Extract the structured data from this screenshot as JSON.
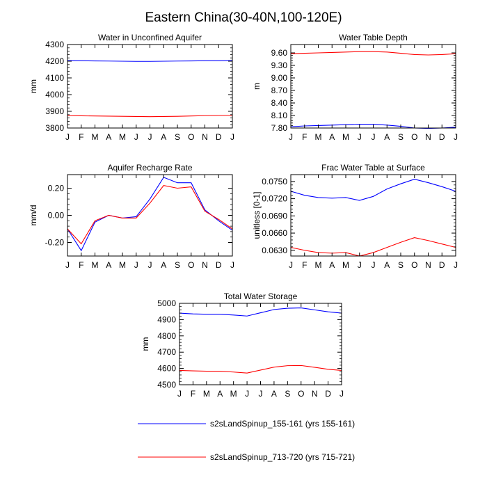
{
  "figure": {
    "title": "Eastern China(30-40N,100-120E)"
  },
  "chart_data": [
    {
      "type": "line",
      "title": "Water in Unconfined Aquifer",
      "ylabel": "mm",
      "categories": [
        "J",
        "F",
        "M",
        "A",
        "M",
        "J",
        "J",
        "A",
        "S",
        "O",
        "N",
        "D",
        "J"
      ],
      "ylim": [
        3800,
        4300
      ],
      "yticks": [
        "3800",
        "3900",
        "4000",
        "4100",
        "4200",
        "4300"
      ],
      "series": [
        {
          "name": "s2sLandSpinup_155-161 (yrs 155-161)",
          "color": "#0000ff",
          "values": [
            4204,
            4203,
            4202,
            4201,
            4200,
            4199,
            4199,
            4200,
            4201,
            4202,
            4203,
            4203,
            4204
          ]
        },
        {
          "name": "s2sLandSpinup_713-720 (yrs 715-721)",
          "color": "#ff0000",
          "values": [
            3874,
            3873,
            3872,
            3871,
            3870,
            3869,
            3868,
            3869,
            3870,
            3872,
            3874,
            3875,
            3876
          ]
        }
      ]
    },
    {
      "type": "line",
      "title": "Water Table Depth",
      "ylabel": "m",
      "categories": [
        "J",
        "F",
        "M",
        "A",
        "M",
        "J",
        "J",
        "A",
        "S",
        "O",
        "N",
        "D",
        "J"
      ],
      "ylim": [
        7.8,
        9.8
      ],
      "yticks": [
        "7.80",
        "8.10",
        "8.40",
        "8.70",
        "9.00",
        "9.30",
        "9.60"
      ],
      "series": [
        {
          "name": "s2sLandSpinup_155-161 (yrs 155-161)",
          "color": "#0000ff",
          "values": [
            7.83,
            7.85,
            7.86,
            7.87,
            7.88,
            7.89,
            7.89,
            7.87,
            7.84,
            7.8,
            7.79,
            7.8,
            7.82
          ]
        },
        {
          "name": "s2sLandSpinup_713-720 (yrs 715-721)",
          "color": "#ff0000",
          "values": [
            9.58,
            9.59,
            9.6,
            9.61,
            9.62,
            9.63,
            9.63,
            9.62,
            9.59,
            9.56,
            9.55,
            9.56,
            9.58
          ]
        }
      ]
    },
    {
      "type": "line",
      "title": "Aquifer Recharge Rate",
      "ylabel": "mm/d",
      "categories": [
        "J",
        "F",
        "M",
        "A",
        "M",
        "J",
        "J",
        "A",
        "S",
        "O",
        "N",
        "D",
        "J"
      ],
      "ylim": [
        -0.3,
        0.3
      ],
      "yticks": [
        "-0.20",
        "0.00",
        "0.20"
      ],
      "ytickvals": [
        -0.2,
        0.0,
        0.2
      ],
      "series": [
        {
          "name": "s2sLandSpinup_155-161 (yrs 155-161)",
          "color": "#0000ff",
          "values": [
            -0.1,
            -0.26,
            -0.05,
            0.0,
            -0.02,
            -0.01,
            0.12,
            0.28,
            0.24,
            0.24,
            0.04,
            -0.04,
            -0.11
          ]
        },
        {
          "name": "s2sLandSpinup_713-720 (yrs 715-721)",
          "color": "#ff0000",
          "values": [
            -0.1,
            -0.21,
            -0.04,
            0.0,
            -0.02,
            -0.02,
            0.09,
            0.22,
            0.2,
            0.21,
            0.03,
            -0.03,
            -0.1
          ]
        }
      ]
    },
    {
      "type": "line",
      "title": "Frac Water Table at Surface",
      "ylabel": "unitless [0-1]",
      "categories": [
        "J",
        "F",
        "M",
        "A",
        "M",
        "J",
        "J",
        "A",
        "S",
        "O",
        "N",
        "D",
        "J"
      ],
      "ylim": [
        0.062,
        0.0762
      ],
      "yticks": [
        "0.0630",
        "0.0660",
        "0.0690",
        "0.0720",
        "0.0750"
      ],
      "ytickvals": [
        0.063,
        0.066,
        0.069,
        0.072,
        0.075
      ],
      "series": [
        {
          "name": "s2sLandSpinup_155-161 (yrs 155-161)",
          "color": "#0000ff",
          "values": [
            0.0733,
            0.0726,
            0.0722,
            0.0721,
            0.0722,
            0.0717,
            0.0724,
            0.0737,
            0.0746,
            0.0754,
            0.0748,
            0.0741,
            0.0733
          ]
        },
        {
          "name": "s2sLandSpinup_713-720 (yrs 715-721)",
          "color": "#ff0000",
          "values": [
            0.0635,
            0.063,
            0.0626,
            0.0625,
            0.0626,
            0.062,
            0.0626,
            0.0635,
            0.0644,
            0.0652,
            0.0647,
            0.0641,
            0.0635
          ]
        }
      ]
    },
    {
      "type": "line",
      "title": "Total Water Storage",
      "ylabel": "mm",
      "categories": [
        "J",
        "F",
        "M",
        "A",
        "M",
        "J",
        "J",
        "A",
        "S",
        "O",
        "N",
        "D",
        "J"
      ],
      "ylim": [
        4500,
        5000
      ],
      "yticks": [
        "4500",
        "4600",
        "4700",
        "4800",
        "4900",
        "5000"
      ],
      "series": [
        {
          "name": "s2sLandSpinup_155-161 (yrs 155-161)",
          "color": "#0000ff",
          "values": [
            4940,
            4935,
            4933,
            4933,
            4928,
            4922,
            4942,
            4962,
            4970,
            4972,
            4960,
            4948,
            4940
          ]
        },
        {
          "name": "s2sLandSpinup_713-720 (yrs 715-721)",
          "color": "#ff0000",
          "values": [
            4588,
            4585,
            4583,
            4583,
            4578,
            4572,
            4590,
            4608,
            4617,
            4618,
            4607,
            4595,
            4588
          ]
        }
      ]
    }
  ],
  "legend": {
    "placement": "bottom-center",
    "entries": [
      {
        "label": "s2sLandSpinup_155-161 (yrs 155-161)",
        "color": "#0000ff"
      },
      {
        "label": "s2sLandSpinup_713-720 (yrs 715-721)",
        "color": "#ff0000"
      }
    ]
  }
}
